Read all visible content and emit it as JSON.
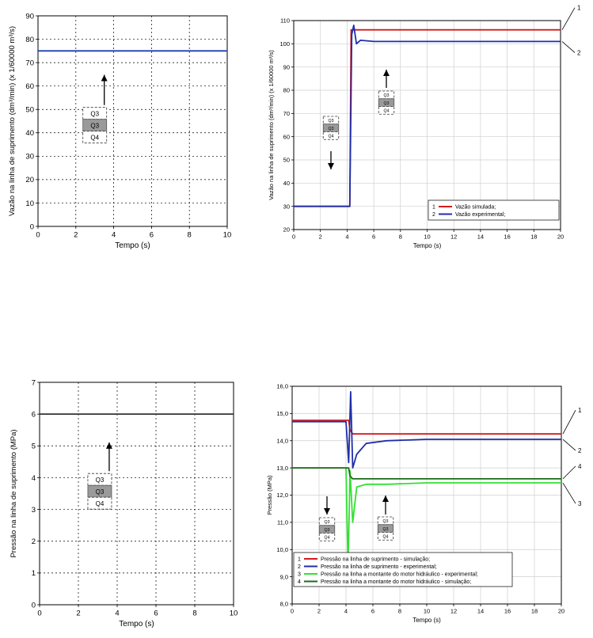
{
  "chart_data": [
    {
      "type": "line",
      "xlabel": "Tempo (s)",
      "ylabel": "Vazão na linha de suprimento (dm³/min) (x 1/60000 m³/s)",
      "xlim": [
        0,
        10
      ],
      "ylim": [
        0,
        90
      ],
      "xticks": [
        "0",
        "2",
        "4",
        "6",
        "8",
        "10"
      ],
      "yticks": [
        "0",
        "10",
        "20",
        "30",
        "40",
        "50",
        "60",
        "70",
        "80",
        "90"
      ],
      "grid": true,
      "series": [
        {
          "color": "#1f3fb5",
          "x": [
            0,
            10
          ],
          "y": [
            75,
            75
          ]
        }
      ],
      "valve_labels": [
        "Q3",
        "Q3",
        "Q4"
      ],
      "arrow_direction": "up"
    },
    {
      "type": "line",
      "xlabel": "Tempo (s)",
      "ylabel": "Vazão na linha de suprimento (dm³/min) (x 1/60000 m³/s)",
      "xlim": [
        0,
        20
      ],
      "ylim": [
        20,
        110
      ],
      "xticks": [
        "0",
        "2",
        "4",
        "6",
        "8",
        "10",
        "12",
        "14",
        "16",
        "18",
        "20"
      ],
      "yticks": [
        "20",
        "30",
        "40",
        "50",
        "60",
        "70",
        "80",
        "90",
        "100",
        "110"
      ],
      "grid": true,
      "legend_position": "bottom-right",
      "series": [
        {
          "name": "Vazão simulada;",
          "color": "#d11a1a",
          "x": [
            0,
            4.2,
            4.3,
            20
          ],
          "y": [
            30,
            30,
            106,
            106
          ]
        },
        {
          "name": "Vazão experimental;",
          "color": "#1f2fa8",
          "x": [
            0,
            4.2,
            4.35,
            4.5,
            4.7,
            5,
            6,
            8,
            12,
            20
          ],
          "y": [
            30,
            30,
            104,
            108,
            100,
            101.5,
            101,
            101,
            101,
            101
          ]
        }
      ],
      "curve_numbers": [
        "1",
        "2"
      ],
      "valve_labels_left": [
        "Q3",
        "Q3",
        "Q4"
      ],
      "valve_labels_right": [
        "Q3",
        "Q3",
        "Q4"
      ]
    },
    {
      "type": "line",
      "xlabel": "Tempo (s)",
      "ylabel": "Pressão na linha de suprimento (MPa)",
      "xlim": [
        0,
        10
      ],
      "ylim": [
        0,
        7
      ],
      "xticks": [
        "0",
        "2",
        "4",
        "6",
        "8",
        "10"
      ],
      "yticks": [
        "0",
        "1",
        "2",
        "3",
        "4",
        "5",
        "6",
        "7"
      ],
      "grid": true,
      "series": [
        {
          "color": "#333333",
          "x": [
            0,
            10
          ],
          "y": [
            6,
            6
          ]
        }
      ],
      "valve_labels": [
        "Q3",
        "Q3",
        "Q4"
      ],
      "arrow_direction": "up"
    },
    {
      "type": "line",
      "xlabel": "Tempo (s)",
      "ylabel": "Pressão (MPa)",
      "xlim": [
        0,
        20
      ],
      "ylim": [
        8,
        16
      ],
      "xticks": [
        "0",
        "2",
        "4",
        "6",
        "8",
        "10",
        "12",
        "14",
        "16",
        "18",
        "20"
      ],
      "yticks": [
        "8,0",
        "9,0",
        "10,0",
        "11,0",
        "12,0",
        "13,0",
        "14,0",
        "15,0",
        "16,0"
      ],
      "grid": true,
      "legend_position": "bottom",
      "series": [
        {
          "name": "Pressão na linha de suprimento - simulação;",
          "color": "#d11a1a",
          "x": [
            0,
            4.2,
            4.3,
            4.5,
            20
          ],
          "y": [
            14.75,
            14.75,
            14.4,
            14.25,
            14.25
          ]
        },
        {
          "name": "Pressão na linha de suprimento - experimental;",
          "color": "#1f2fa8",
          "x": [
            0,
            4.0,
            4.2,
            4.35,
            4.5,
            4.8,
            5.5,
            7,
            10,
            20
          ],
          "y": [
            14.7,
            14.7,
            13.2,
            15.8,
            13.0,
            13.5,
            13.9,
            14.0,
            14.05,
            14.05
          ]
        },
        {
          "name": "Pressão na linha a montante do motor hidráulico - experimental;",
          "color": "#33e033",
          "x": [
            0,
            4.0,
            4.15,
            4.3,
            4.5,
            4.8,
            5.5,
            7,
            10,
            20
          ],
          "y": [
            13.0,
            13.0,
            9.3,
            12.9,
            11.0,
            12.3,
            12.4,
            12.4,
            12.45,
            12.45
          ]
        },
        {
          "name": "Pressão na linha a montante do motor hidráulico - simulação;",
          "color": "#1b6b1b",
          "x": [
            0,
            4.2,
            4.3,
            4.5,
            20
          ],
          "y": [
            13.0,
            13.0,
            12.7,
            12.6,
            12.6
          ]
        }
      ],
      "curve_numbers": [
        "1",
        "2",
        "3",
        "4"
      ],
      "valve_labels_left": [
        "Q3",
        "Q3",
        "Q4"
      ],
      "valve_labels_right": [
        "Q3",
        "Q3",
        "Q4"
      ]
    }
  ]
}
